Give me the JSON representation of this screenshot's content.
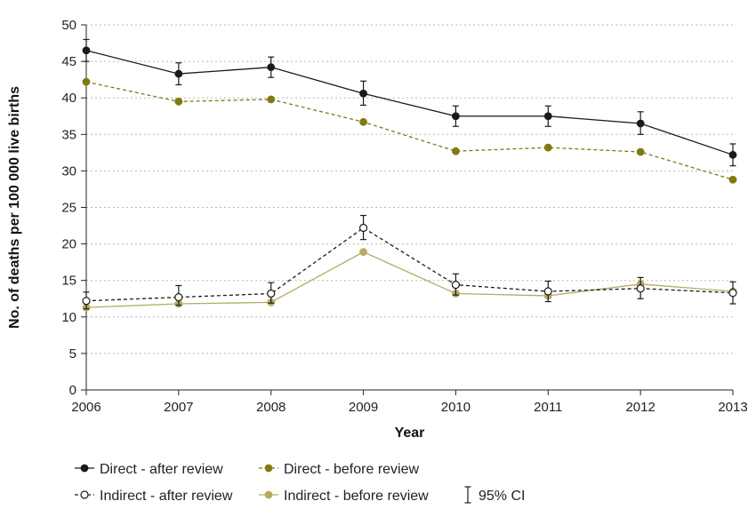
{
  "chart_data": {
    "type": "line",
    "title": "",
    "xlabel": "Year",
    "ylabel": "No. of deaths per 100 000 live births",
    "x": [
      "2006",
      "2007",
      "2008",
      "2009",
      "2010",
      "2011",
      "2012",
      "2013"
    ],
    "ylim": [
      0,
      50
    ],
    "yticks": [
      "0",
      "5",
      "10",
      "15",
      "20",
      "25",
      "30",
      "35",
      "40",
      "45",
      "50"
    ],
    "grid": "horizontal dotted",
    "legend_position": "bottom",
    "series": [
      {
        "name": "Direct - after review",
        "values": [
          46.5,
          43.3,
          44.2,
          40.6,
          37.5,
          37.5,
          36.5,
          32.2
        ],
        "ci_low": [
          45.0,
          41.8,
          42.8,
          39.0,
          36.1,
          36.1,
          35.0,
          30.7
        ],
        "ci_high": [
          48.0,
          44.8,
          45.6,
          42.3,
          38.9,
          38.9,
          38.1,
          33.7
        ],
        "color": "#1a1a1a",
        "marker": "filled",
        "dash": "solid"
      },
      {
        "name": "Direct - before review",
        "values": [
          42.2,
          39.5,
          39.8,
          36.7,
          32.7,
          33.2,
          32.6,
          28.8
        ],
        "color": "#7f7a12",
        "marker": "filled",
        "dash": "dashed"
      },
      {
        "name": "Indirect - after review",
        "values": [
          12.2,
          12.7,
          13.2,
          22.2,
          14.4,
          13.5,
          13.9,
          13.3
        ],
        "ci_low": [
          11.1,
          11.6,
          11.9,
          20.6,
          13.0,
          12.1,
          12.5,
          11.8
        ],
        "ci_high": [
          13.4,
          14.3,
          14.7,
          23.9,
          15.9,
          14.9,
          15.4,
          14.8
        ],
        "color": "#1a1a1a",
        "marker": "open",
        "dash": "dashed"
      },
      {
        "name": "Indirect - before review",
        "values": [
          11.3,
          11.8,
          12.0,
          18.9,
          13.2,
          12.9,
          14.5,
          13.5
        ],
        "color": "#b5ab63",
        "marker": "filled",
        "dash": "solid"
      }
    ],
    "ci_legend_label": "95% CI",
    "colors": {
      "axis": "#222222",
      "grid": "#b8b8b8"
    }
  }
}
